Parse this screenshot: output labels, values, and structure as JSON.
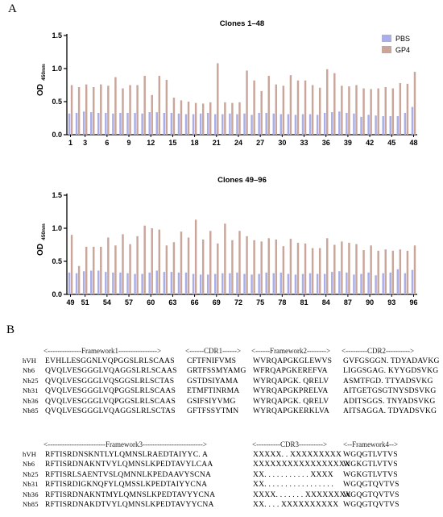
{
  "panels": {
    "a": "A",
    "b": "B"
  },
  "chart_data": [
    {
      "type": "bar",
      "title": "Clones 1–48",
      "ylabel_main": "OD",
      "ylabel_sub": "450nm",
      "ylim": [
        0,
        1.5
      ],
      "yticks": [
        "0.0",
        "0.5",
        "1.0",
        "1.5"
      ],
      "xtick_labels": [
        "1",
        "3",
        "6",
        "9",
        "12",
        "15",
        "18",
        "21",
        "24",
        "27",
        "30",
        "33",
        "36",
        "39",
        "42",
        "45",
        "48"
      ],
      "xtick_positions": [
        1,
        3,
        6,
        9,
        12,
        15,
        18,
        21,
        24,
        27,
        30,
        33,
        36,
        39,
        42,
        45,
        48
      ],
      "x_count": 48,
      "legend_position": "top-right",
      "series": [
        {
          "name": "PBS",
          "color": "#a9aee8",
          "values": [
            0.32,
            0.33,
            0.35,
            0.34,
            0.33,
            0.33,
            0.32,
            0.33,
            0.33,
            0.33,
            0.32,
            0.34,
            0.34,
            0.33,
            0.33,
            0.32,
            0.31,
            0.31,
            0.32,
            0.33,
            0.31,
            0.31,
            0.32,
            0.31,
            0.32,
            0.3,
            0.33,
            0.33,
            0.32,
            0.31,
            0.31,
            0.3,
            0.31,
            0.31,
            0.3,
            0.33,
            0.34,
            0.35,
            0.33,
            0.32,
            0.27,
            0.3,
            0.29,
            0.28,
            0.28,
            0.28,
            0.33,
            0.42
          ]
        },
        {
          "name": "GP4",
          "color": "#c9a59a",
          "values": [
            0.75,
            0.72,
            0.76,
            0.72,
            0.76,
            0.74,
            0.87,
            0.7,
            0.75,
            0.75,
            0.89,
            0.6,
            0.89,
            0.83,
            0.56,
            0.52,
            0.5,
            0.48,
            0.47,
            0.49,
            1.08,
            0.49,
            0.48,
            0.49,
            0.97,
            0.82,
            0.66,
            0.89,
            0.76,
            0.74,
            0.9,
            0.82,
            0.82,
            0.75,
            0.71,
            0.99,
            0.93,
            0.74,
            0.73,
            0.75,
            0.7,
            0.69,
            0.7,
            0.72,
            0.7,
            0.78,
            0.77,
            0.95
          ]
        }
      ]
    },
    {
      "type": "bar",
      "title": "Clones 49–96",
      "ylabel_main": "OD",
      "ylabel_sub": "450nm",
      "ylim": [
        0,
        1.5
      ],
      "yticks": [
        "0.0",
        "0.5",
        "1.0",
        "1.5"
      ],
      "xtick_labels": [
        "49",
        "51",
        "54",
        "57",
        "60",
        "63",
        "66",
        "69",
        "72",
        "75",
        "78",
        "81",
        "84",
        "87",
        "90",
        "93",
        "96"
      ],
      "xtick_positions": [
        49,
        51,
        54,
        57,
        60,
        63,
        66,
        69,
        72,
        75,
        78,
        81,
        84,
        87,
        90,
        93,
        96
      ],
      "x_start": 49,
      "x_count": 48,
      "series": [
        {
          "name": "PBS",
          "color": "#a9aee8",
          "values": [
            0.33,
            0.32,
            0.35,
            0.36,
            0.36,
            0.34,
            0.33,
            0.33,
            0.32,
            0.31,
            0.31,
            0.33,
            0.36,
            0.34,
            0.34,
            0.33,
            0.33,
            0.31,
            0.3,
            0.3,
            0.31,
            0.32,
            0.32,
            0.33,
            0.31,
            0.3,
            0.31,
            0.33,
            0.32,
            0.33,
            0.31,
            0.3,
            0.31,
            0.32,
            0.31,
            0.31,
            0.34,
            0.35,
            0.33,
            0.3,
            0.31,
            0.33,
            0.29,
            0.32,
            0.33,
            0.38,
            0.32,
            0.37
          ]
        },
        {
          "name": "GP4",
          "color": "#c9a59a",
          "values": [
            0.9,
            0.43,
            0.72,
            0.72,
            0.72,
            0.86,
            0.74,
            0.91,
            0.76,
            0.88,
            1.04,
            1.0,
            0.98,
            0.74,
            0.79,
            0.95,
            0.86,
            1.13,
            0.83,
            0.96,
            0.77,
            1.07,
            0.82,
            0.96,
            0.88,
            0.82,
            0.8,
            0.85,
            0.83,
            0.73,
            0.84,
            0.78,
            0.77,
            0.7,
            0.7,
            0.85,
            0.75,
            0.8,
            0.78,
            0.76,
            0.67,
            0.74,
            0.66,
            0.68,
            0.66,
            0.68,
            0.66,
            0.74
          ]
        }
      ]
    }
  ],
  "sequences": {
    "header_top": {
      "framework1": "<--------------Framework1---------------->",
      "cdr1": "<------CDR1------>",
      "framework2": "<------Framework2-------->",
      "cdr2": "<---------CDR2---------->"
    },
    "rows_top": [
      {
        "name": "hVH",
        "fw1": "EVHLLESGGNLVQPGGSLRLSCAAS",
        "cdr1": "CFTFNIFVMS",
        "fw2": "WVRQAPGKGLEWVS",
        "cdr2": "GVFGSGGN. TDYADAVKG"
      },
      {
        "name": "Nb6",
        "fw1": "QVQLVESGGGLVQAGGSLRLSCAAS",
        "cdr1": "GRTFSSMYAMG",
        "fw2": "WFRQAPGKEREFVA",
        "cdr2": "LIGGSGAG. KYYGDSVKG"
      },
      {
        "name": "Nb25",
        "fw1": "QVQLVESGGGLVQSGGSLRLSCTAS",
        "cdr1": "GSTDSIYAMA",
        "fw2": "WYRQAPGK. QRELV",
        "cdr2": "ASMTFGD. TTYADSVKG"
      },
      {
        "name": "Nb31",
        "fw1": "QVQLVESGGGLVQPGGSLRLSCAAS",
        "cdr1": "ETMFTINRMA",
        "fw2": "WYRQAPGKPRELVA",
        "cdr2": "AITGETGSGTNYSDSVKG"
      },
      {
        "name": "Nb36",
        "fw1": "QVQLVESGGGLVQPGGSLRLSCAAS",
        "cdr1": "GSIFSIYVMG",
        "fw2": "WYRQAPGK. QRELV",
        "cdr2": "ADITSGGS. TNYADSVKG"
      },
      {
        "name": "Nb85",
        "fw1": "QVQLVESGGGLVQAGGSLRLSCTAS",
        "cdr1": "GFTFSSYTMN",
        "fw2": "WYRQAPGKERKLVA",
        "cdr2": "AITSAGGA. TDYADSVKG"
      }
    ],
    "header_bottom": {
      "framework3": "<------------------------Framework3------------------------->",
      "cdr3": "<----------CDR3---------->",
      "framework4": "<--Framework4-->"
    },
    "rows_bottom": [
      {
        "name": "hVH",
        "fw3": "RFTISRDNSKNTLYLQMNSLRAEDTAIYYC. A",
        "cdr3": "XXXXX. . XXXXXXXXX",
        "fw4": "WGQGTLVTVS"
      },
      {
        "name": "Nb6",
        "fw3": "RFTISRDNAKNTVYLQMNSLKPEDTAVYLCAA",
        "cdr3": "XXXXXXXXXXXXXXXXX",
        "fw4": "WGKGTLVTVS"
      },
      {
        "name": "Nb25",
        "fw3": "RFTISRLSAENTVSLQMNNLKPEDAAVYSCNA",
        "cdr3": "XX. . . . . . . . . . . XXXX",
        "fw4": "WGKGTLVTVS"
      },
      {
        "name": "Nb31",
        "fw3": "RFTISRDIGKNQFYLQMSSLKPEDTAIYYCNA",
        "cdr3": "XX. . . . . . . . . . . . . . . . .",
        "fw4": "WGQGTQVTVS"
      },
      {
        "name": "Nb36",
        "fw3": "RFTISRDNAKNTMYLQMNSLKPEDTAVYYCNA",
        "cdr3": "XXXX. . . . . . . XXXXXXXX",
        "fw4": "WGQGTQVTVS"
      },
      {
        "name": "Nb85",
        "fw3": "RFTISRDNAKDTVYLQMNSLKPEDTAVYYCNA",
        "cdr3": "XX. . . . XXXXXXXXXX",
        "fw4": "WGQGTQVTVS"
      }
    ]
  }
}
